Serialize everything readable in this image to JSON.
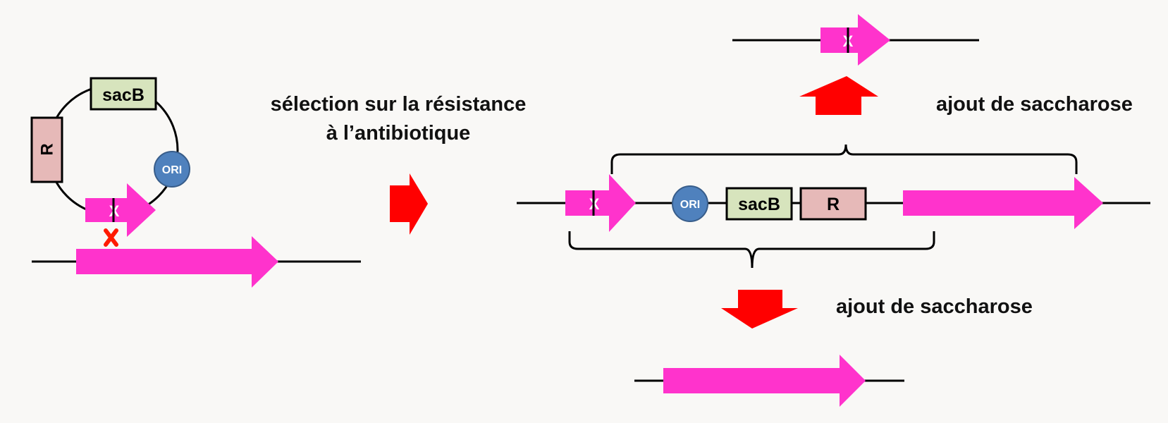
{
  "diagram": {
    "plasmid": {
      "resistance_label": "R",
      "sacb_label": "sacB",
      "ori_label": "ORI",
      "crossover_mark": "X"
    },
    "step1_caption": {
      "line1": "sélection sur la résistance",
      "line2": "à l’antibiotique"
    },
    "integrated": {
      "ori_label": "ORI",
      "sacb_label": "sacB",
      "resistance_label": "R"
    },
    "outcome_top_caption": "ajout de saccharose",
    "outcome_bottom_caption": "ajout de saccharose"
  },
  "colors": {
    "pink_gene": "#ff33cc",
    "red_arrow": "#ff0000",
    "crossover_x": "#ff1a00",
    "resistance_box": "#e6b9b8",
    "sacb_box": "#d7e4bd",
    "ori_circle": "#4f81bd"
  }
}
